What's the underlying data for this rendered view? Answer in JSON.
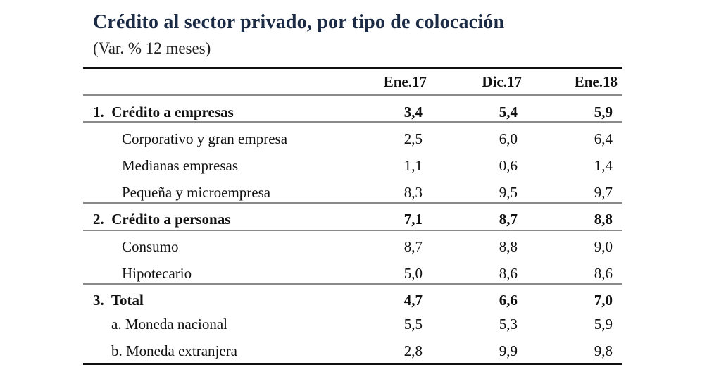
{
  "title": "Crédito al sector privado, por tipo de colocación",
  "subtitle": "(Var. % 12 meses)",
  "columns": [
    "Ene.17",
    "Dic.17",
    "Ene.18"
  ],
  "rows": [
    {
      "label": "1.  Crédito a empresas",
      "values": [
        "3,4",
        "5,4",
        "5,9"
      ],
      "bold": true
    },
    {
      "label": "Corporativo y gran empresa",
      "values": [
        "2,5",
        "6,0",
        "6,4"
      ]
    },
    {
      "label": "Medianas empresas",
      "values": [
        "1,1",
        "0,6",
        "1,4"
      ]
    },
    {
      "label": "Pequeña y microempresa",
      "values": [
        "8,3",
        "9,5",
        "9,7"
      ]
    },
    {
      "label": "2.  Crédito a personas",
      "values": [
        "7,1",
        "8,7",
        "8,8"
      ],
      "bold": true
    },
    {
      "label": "Consumo",
      "values": [
        "8,7",
        "8,8",
        "9,0"
      ]
    },
    {
      "label": "Hipotecario",
      "values": [
        "5,0",
        "8,6",
        "8,6"
      ]
    },
    {
      "label": "3.  Total",
      "values": [
        "4,7",
        "6,6",
        "7,0"
      ],
      "bold": true
    },
    {
      "label": "a. Moneda nacional",
      "values": [
        "5,5",
        "5,3",
        "5,9"
      ]
    },
    {
      "label": "b. Moneda extranjera",
      "values": [
        "2,8",
        "9,9",
        "9,8"
      ]
    }
  ]
}
